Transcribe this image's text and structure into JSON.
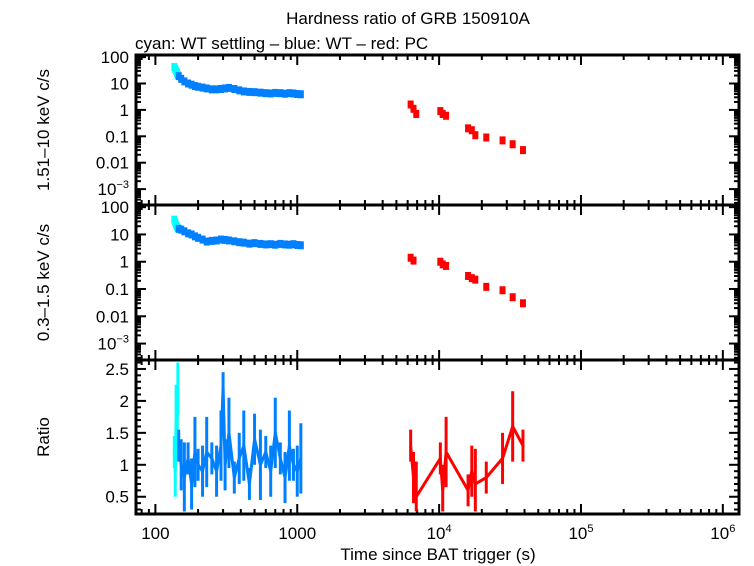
{
  "chart_data": {
    "title": "Hardness ratio of GRB 150910A",
    "subtitle": "cyan: WT settling – blue: WT – red: PC",
    "xlabel": "Time since BAT trigger (s)",
    "x_scale": "log",
    "xlim": [
      73,
      1300000
    ],
    "x_ticks": [
      {
        "v": 100,
        "label": "100"
      },
      {
        "v": 1000,
        "label": "1000"
      },
      {
        "v": 10000,
        "label": "10",
        "sup": "4"
      },
      {
        "v": 100000,
        "label": "10",
        "sup": "5"
      },
      {
        "v": 1000000,
        "label": "10",
        "sup": "6"
      }
    ],
    "colors": {
      "wt_settling": "#00ffff",
      "wt": "#0080ff",
      "pc": "#ff0000"
    },
    "panels": [
      {
        "type": "scatter",
        "ylabel": "1.51–10 keV c/s",
        "y_scale": "log",
        "ylim": [
          0.00025,
          120
        ],
        "y_ticks": [
          {
            "v": 100,
            "label": "100"
          },
          {
            "v": 10,
            "label": "10"
          },
          {
            "v": 1,
            "label": "1"
          },
          {
            "v": 0.1,
            "label": "0.1"
          },
          {
            "v": 0.01,
            "label": "0.01"
          },
          {
            "v": 0.001,
            "label": "10",
            "sup": "−3"
          }
        ],
        "series": [
          {
            "mode": "wt_settling",
            "x": [
              136,
              138,
              140,
              142,
              144
            ],
            "y": [
              42,
              36,
              30,
              25,
              21
            ]
          },
          {
            "mode": "wt",
            "x": [
              146,
              152,
              160,
              170,
              180,
              190,
              200,
              215,
              230,
              250,
              270,
              290,
              310,
              330,
              360,
              390,
              420,
              460,
              500,
              550,
              600,
              650,
              700,
              760,
              820,
              880,
              940,
              1000,
              1060
            ],
            "y": [
              19,
              15,
              12,
              10,
              9,
              8,
              7.5,
              7,
              6.5,
              6,
              6,
              6.2,
              6.5,
              6.8,
              6.2,
              5.5,
              5,
              4.8,
              4.7,
              4.5,
              4.3,
              4.2,
              4.4,
              4.3,
              4.1,
              4.3,
              4.2,
              4,
              3.9
            ]
          },
          {
            "mode": "pc",
            "x": [
              6300,
              6600,
              6900,
              10200,
              10600,
              11200,
              16000,
              17000,
              18000,
              21500,
              28000,
              33000,
              39000
            ],
            "y": [
              1.6,
              1.1,
              0.7,
              0.9,
              0.7,
              0.6,
              0.2,
              0.17,
              0.11,
              0.09,
              0.07,
              0.05,
              0.03
            ]
          }
        ]
      },
      {
        "type": "scatter",
        "ylabel": "0.3–1.5 keV c/s",
        "y_scale": "log",
        "ylim": [
          0.00025,
          120
        ],
        "y_ticks": [
          {
            "v": 100,
            "label": "100"
          },
          {
            "v": 10,
            "label": "10"
          },
          {
            "v": 1,
            "label": "1"
          },
          {
            "v": 0.1,
            "label": "0.1"
          },
          {
            "v": 0.01,
            "label": "0.01"
          },
          {
            "v": 0.001,
            "label": "10",
            "sup": "−3"
          }
        ],
        "series": [
          {
            "mode": "wt_settling",
            "x": [
              136,
              138,
              140,
              142,
              144
            ],
            "y": [
              35,
              28,
              22,
              19,
              17
            ]
          },
          {
            "mode": "wt",
            "x": [
              146,
              152,
              160,
              170,
              180,
              190,
              200,
              215,
              230,
              250,
              270,
              290,
              310,
              330,
              360,
              390,
              420,
              460,
              500,
              550,
              600,
              650,
              700,
              760,
              820,
              880,
              940,
              1000,
              1060
            ],
            "y": [
              16,
              15,
              13,
              11,
              10,
              8.5,
              7.5,
              6.5,
              5.5,
              5.8,
              6,
              6.5,
              6.3,
              6,
              5.6,
              5.2,
              5,
              4.6,
              4.8,
              4.5,
              4.3,
              4.4,
              4.2,
              4.5,
              4.3,
              4.2,
              4.4,
              4.1,
              4
            ]
          },
          {
            "mode": "pc",
            "x": [
              6300,
              6600,
              10200,
              10600,
              11200,
              16000,
              17000,
              18000,
              21500,
              28000,
              33000,
              39000
            ],
            "y": [
              1.4,
              1.1,
              1.0,
              0.8,
              0.7,
              0.3,
              0.25,
              0.22,
              0.12,
              0.09,
              0.05,
              0.03
            ]
          }
        ]
      },
      {
        "type": "line",
        "ylabel": "Ratio",
        "y_scale": "linear",
        "ylim": [
          0.23,
          2.64
        ],
        "y_ticks": [
          {
            "v": 2.5,
            "label": "2.5"
          },
          {
            "v": 2,
            "label": "2"
          },
          {
            "v": 1.5,
            "label": "1.5"
          },
          {
            "v": 1,
            "label": "1"
          },
          {
            "v": 0.5,
            "label": "0.5"
          }
        ],
        "series": [
          {
            "mode": "wt_settling",
            "x": [
              136,
              138,
              140,
              142,
              144
            ],
            "y": [
              1.2,
              0.9,
              1.7,
              1.3,
              2.2
            ]
          },
          {
            "mode": "wt",
            "x": [
              146,
              152,
              160,
              170,
              180,
              190,
              200,
              215,
              230,
              250,
              270,
              290,
              300,
              310,
              330,
              360,
              390,
              420,
              460,
              500,
              550,
              600,
              650,
              700,
              760,
              820,
              880,
              940,
              1000,
              1060
            ],
            "y": [
              1.3,
              1.0,
              0.8,
              1.1,
              0.7,
              1.2,
              1.0,
              0.9,
              1.2,
              1.1,
              0.9,
              1.3,
              2.2,
              1.0,
              1.5,
              0.8,
              1.1,
              1.3,
              0.7,
              1.4,
              1.0,
              1.2,
              0.9,
              1.5,
              1.1,
              0.8,
              1.3,
              1.0,
              0.9,
              1.1
            ]
          },
          {
            "mode": "pc",
            "x": [
              6300,
              6600,
              6900,
              10200,
              10600,
              11200,
              16000,
              17000,
              18000,
              21500,
              28000,
              33000,
              39000
            ],
            "y": [
              1.3,
              0.8,
              0.5,
              1.1,
              0.6,
              1.2,
              0.6,
              0.9,
              0.7,
              0.8,
              1.1,
              1.6,
              1.3
            ]
          }
        ]
      }
    ]
  }
}
